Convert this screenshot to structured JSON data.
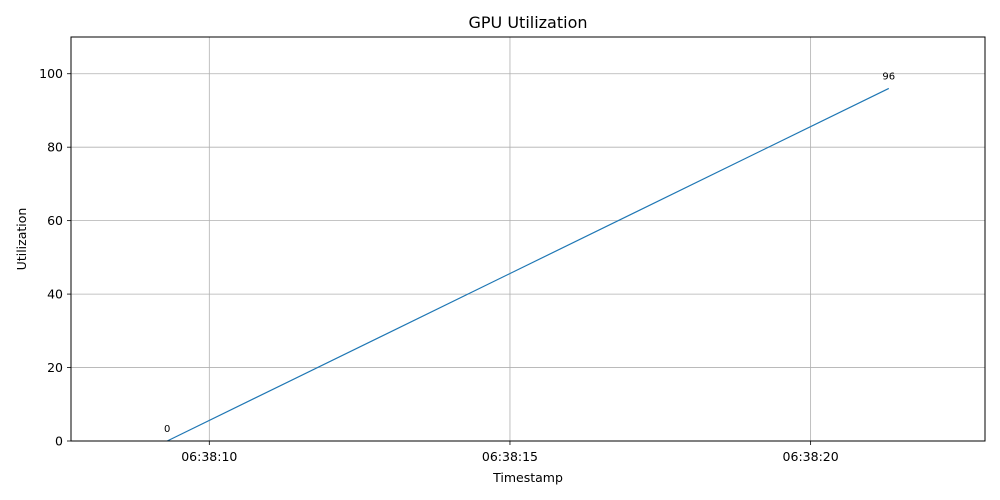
{
  "chart_data": {
    "type": "line",
    "title": "GPU Utilization",
    "xlabel": "Timestamp",
    "ylabel": "Utilization",
    "x_start": "06:38:09.3",
    "x_end": "06:38:21.3",
    "xlim": [
      "06:38:07.7",
      "06:38:22.9"
    ],
    "ylim": [
      0,
      110
    ],
    "x_ticks": [
      "06:38:10",
      "06:38:15",
      "06:38:20"
    ],
    "y_ticks": [
      0,
      20,
      40,
      60,
      80,
      100
    ],
    "series": [
      {
        "x": [
          "06:38:09.3",
          "06:38:21.3"
        ],
        "values": [
          0,
          96
        ],
        "color": "#1f77b4"
      }
    ],
    "data_labels": [
      "0",
      "96"
    ],
    "grid": true,
    "legend": "none"
  }
}
